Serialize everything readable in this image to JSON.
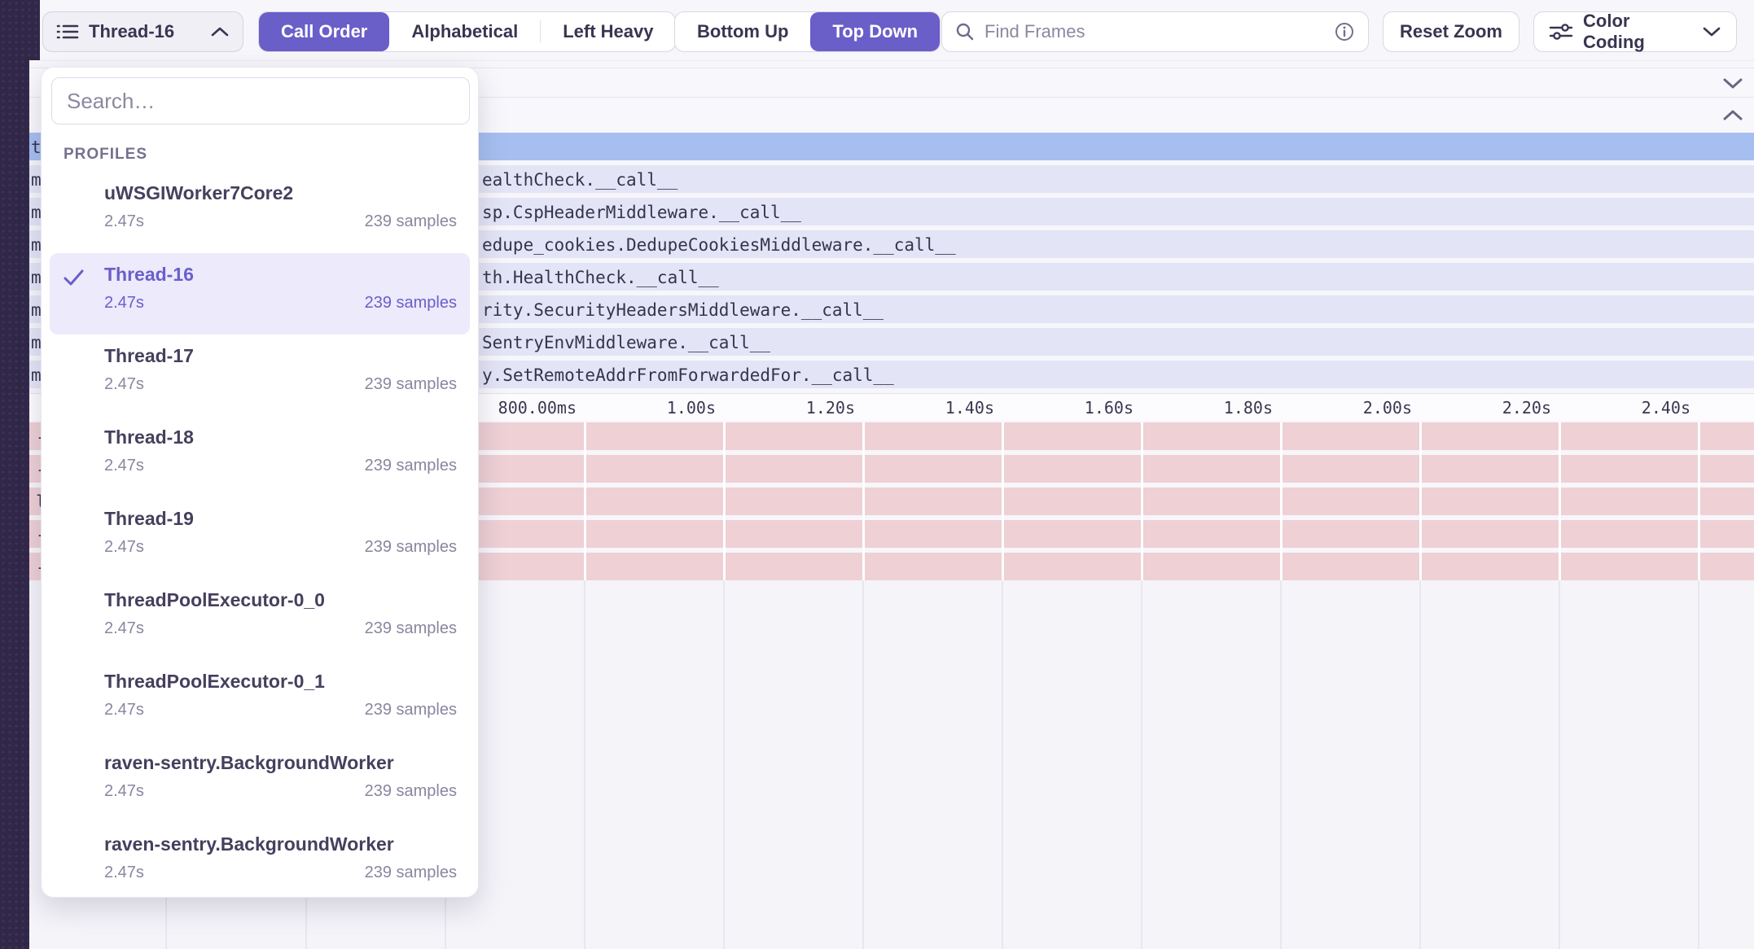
{
  "toolbar": {
    "thread_selector": {
      "label": "Thread-16"
    },
    "sort_options": [
      {
        "label": "Call Order",
        "selected": true
      },
      {
        "label": "Alphabetical",
        "selected": false
      },
      {
        "label": "Left Heavy",
        "selected": false
      }
    ],
    "direction_options": [
      {
        "label": "Bottom Up",
        "selected": false
      },
      {
        "label": "Top Down",
        "selected": true
      }
    ],
    "find_frames": {
      "placeholder": "Find Frames"
    },
    "reset_zoom_label": "Reset Zoom",
    "color_coding_label": "Color Coding"
  },
  "profiles_dropdown": {
    "search_placeholder": "Search…",
    "section_label": "PROFILES",
    "items": [
      {
        "name": "uWSGIWorker7Core2",
        "duration": "2.47s",
        "samples": "239 samples",
        "selected": false
      },
      {
        "name": "Thread-16",
        "duration": "2.47s",
        "samples": "239 samples",
        "selected": true
      },
      {
        "name": "Thread-17",
        "duration": "2.47s",
        "samples": "239 samples",
        "selected": false
      },
      {
        "name": "Thread-18",
        "duration": "2.47s",
        "samples": "239 samples",
        "selected": false
      },
      {
        "name": "Thread-19",
        "duration": "2.47s",
        "samples": "239 samples",
        "selected": false
      },
      {
        "name": "ThreadPoolExecutor-0_0",
        "duration": "2.47s",
        "samples": "239 samples",
        "selected": false
      },
      {
        "name": "ThreadPoolExecutor-0_1",
        "duration": "2.47s",
        "samples": "239 samples",
        "selected": false
      },
      {
        "name": "raven-sentry.BackgroundWorker",
        "duration": "2.47s",
        "samples": "239 samples",
        "selected": false
      },
      {
        "name": "raven-sentry.BackgroundWorker",
        "duration": "2.47s",
        "samples": "239 samples",
        "selected": false
      }
    ]
  },
  "flamegraph": {
    "selected_row_letter": "t",
    "rows": [
      {
        "letter": "m",
        "fragment": "ealthCheck.__call__"
      },
      {
        "letter": "m",
        "fragment": "sp.CspHeaderMiddleware.__call__"
      },
      {
        "letter": "m",
        "fragment": "edupe_cookies.DedupeCookiesMiddleware.__call__"
      },
      {
        "letter": "m",
        "fragment": "th.HealthCheck.__call__"
      },
      {
        "letter": "m",
        "fragment": "rity.SecurityHeadersMiddleware.__call__"
      },
      {
        "letter": "m",
        "fragment": "SentryEnvMiddleware.__call__"
      },
      {
        "letter": "m",
        "fragment": "y.SetRemoteAddrFromForwardedFor.__call__"
      }
    ],
    "axis_ticks": [
      "800.00ms",
      "1.00s",
      "1.20s",
      "1.40s",
      "1.60s",
      "1.80s",
      "2.00s",
      "2.20s",
      "2.40s"
    ],
    "pink_row_letters": [
      "-",
      "-",
      "l",
      "-",
      "-"
    ],
    "colors": {
      "accent_purple": "#6a5ec8",
      "selected_frame_blue": "#a6bff0",
      "frame_lavender": "#e3e5f6",
      "sleep_frame_pink": "#eed0d5",
      "sidebar_dark": "#312849"
    }
  }
}
